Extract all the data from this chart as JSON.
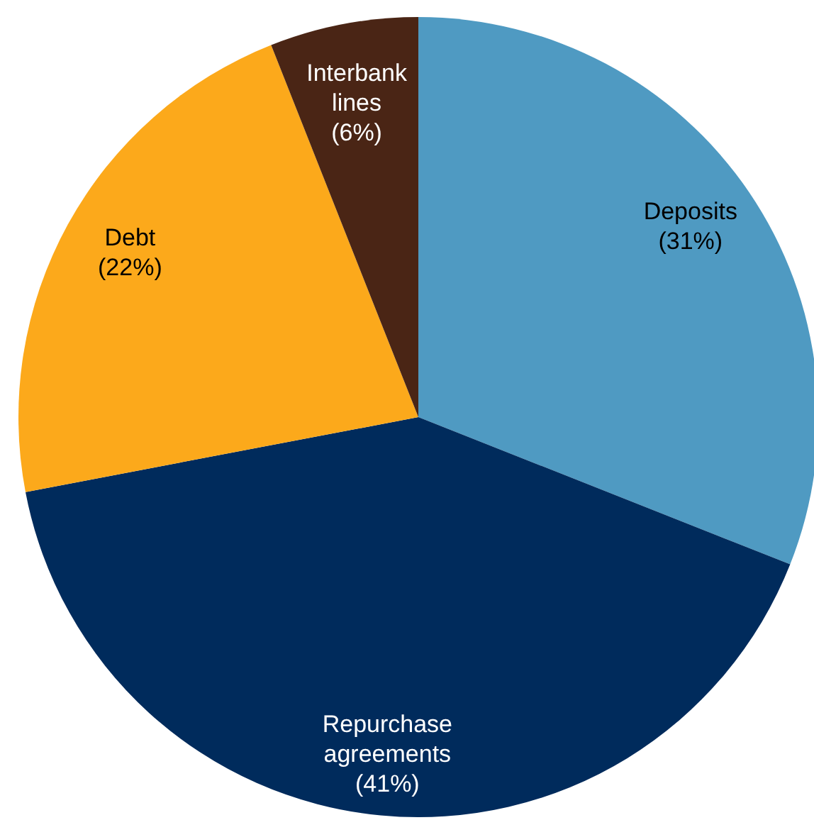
{
  "chart_data": {
    "type": "pie",
    "categories": [
      "Deposits",
      "Repurchase agreements",
      "Debt",
      "Interbank lines"
    ],
    "values": [
      31,
      41,
      22,
      6
    ],
    "colors": [
      "#4f9ac2",
      "#002b5c",
      "#fca91b",
      "#4a2515"
    ],
    "value_labels": [
      "(31%)",
      "(41%)",
      "(22%)",
      "(6%)"
    ]
  }
}
